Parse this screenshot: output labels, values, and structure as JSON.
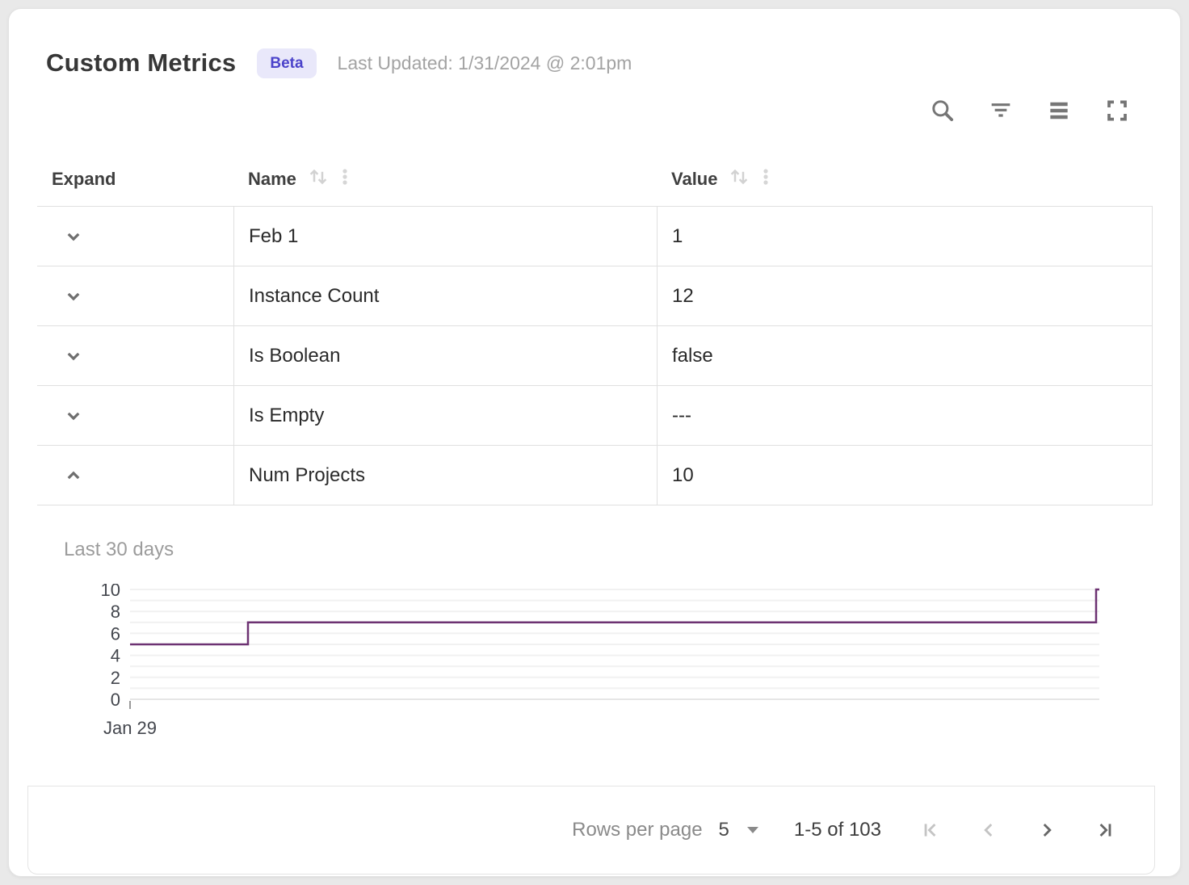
{
  "header": {
    "title": "Custom Metrics",
    "badge": "Beta",
    "last_updated": "Last Updated: 1/31/2024 @ 2:01pm"
  },
  "toolbar": {
    "icons": [
      "search",
      "filter",
      "density",
      "fullscreen"
    ]
  },
  "table": {
    "columns": [
      {
        "label": "Expand",
        "sortable": false
      },
      {
        "label": "Name",
        "sortable": true
      },
      {
        "label": "Value",
        "sortable": true
      }
    ],
    "rows": [
      {
        "name": "Feb 1",
        "value": "1",
        "expanded": false
      },
      {
        "name": "Instance Count",
        "value": "12",
        "expanded": false
      },
      {
        "name": "Is Boolean",
        "value": "false",
        "expanded": false
      },
      {
        "name": "Is Empty",
        "value": "---",
        "expanded": false
      },
      {
        "name": "Num Projects",
        "value": "10",
        "expanded": true
      }
    ]
  },
  "chart_data": {
    "type": "line",
    "step": true,
    "title": "Last 30 days",
    "series_name": "Num Projects",
    "xlim": [
      0,
      30
    ],
    "ylim": [
      0,
      10
    ],
    "yticks": [
      0,
      2,
      4,
      6,
      8,
      10
    ],
    "grid_step": 1,
    "x_first_tick_label": "Jan 29",
    "line_color": "#6d3272",
    "points": [
      {
        "x": 0,
        "y": 5
      },
      {
        "x": 3.65,
        "y": 5
      },
      {
        "x": 3.65,
        "y": 7
      },
      {
        "x": 29.9,
        "y": 7
      },
      {
        "x": 29.9,
        "y": 10
      },
      {
        "x": 30,
        "y": 10
      }
    ]
  },
  "footer": {
    "rows_per_page_label": "Rows per page",
    "rows_per_page_value": "5",
    "range_label": "1-5 of 103"
  },
  "colors": {
    "accent_badge_bg": "#e9e8fa",
    "accent_badge_text": "#4b43ca",
    "chart_line": "#6d3272",
    "icon_gray": "#757575",
    "icon_light": "#d2d2d2",
    "pager_disabled": "#c4c4c4",
    "pager_enabled": "#666666",
    "border": "#e0e0e0"
  }
}
